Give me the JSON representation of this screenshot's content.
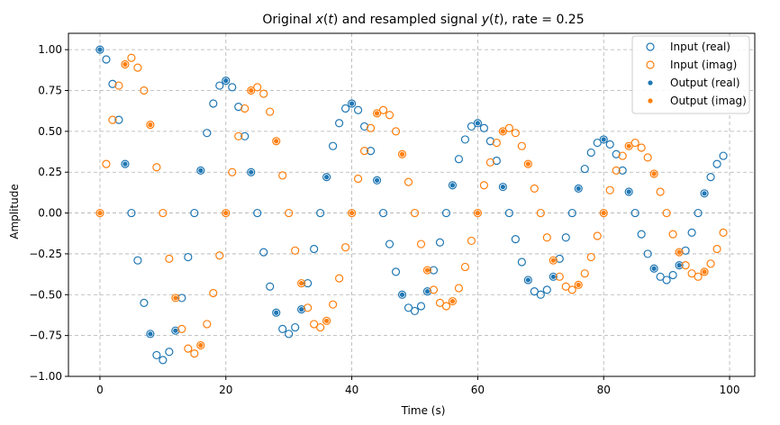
{
  "chart_data": {
    "type": "scatter",
    "title_parts": [
      "Original ",
      "x",
      "(",
      "t",
      ") and resampled signal ",
      "y",
      "(",
      "t",
      "), rate = 0.25"
    ],
    "xlabel": "Time (s)",
    "ylabel": "Amplitude",
    "xlim": [
      -5,
      104
    ],
    "ylim": [
      -1.0,
      1.1
    ],
    "xticks": [
      0,
      20,
      40,
      60,
      80,
      100
    ],
    "yticks": [
      -1.0,
      -0.75,
      -0.5,
      -0.25,
      0.0,
      0.25,
      0.5,
      0.75,
      1.0
    ],
    "xtick_labels": [
      "0",
      "20",
      "40",
      "60",
      "80",
      "100"
    ],
    "ytick_labels": [
      "−1.00",
      "−0.75",
      "−0.50",
      "−0.25",
      "0.00",
      "0.25",
      "0.50",
      "0.75",
      "1.00"
    ],
    "grid": true,
    "legend_position": "top-right",
    "colors": {
      "blue": "#1f77b4",
      "orange": "#ff7f0e",
      "grid": "#b0b0b0"
    },
    "series": [
      {
        "name": "Input (real)",
        "marker": "hollow",
        "color": "#1f77b4",
        "x": [
          0,
          1,
          2,
          3,
          4,
          5,
          6,
          7,
          8,
          9,
          10,
          11,
          12,
          13,
          14,
          15,
          16,
          17,
          18,
          19,
          20,
          21,
          22,
          23,
          24,
          25,
          26,
          27,
          28,
          29,
          30,
          31,
          32,
          33,
          34,
          35,
          36,
          37,
          38,
          39,
          40,
          41,
          42,
          43,
          44,
          45,
          46,
          47,
          48,
          49,
          50,
          51,
          52,
          53,
          54,
          55,
          56,
          57,
          58,
          59,
          60,
          61,
          62,
          63,
          64,
          65,
          66,
          67,
          68,
          69,
          70,
          71,
          72,
          73,
          74,
          75,
          76,
          77,
          78,
          79,
          80,
          81,
          82,
          83,
          84,
          85,
          86,
          87,
          88,
          89,
          90,
          91,
          92,
          93,
          94,
          95,
          96,
          97,
          98,
          99
        ],
        "y": [
          1.0,
          0.94,
          0.79,
          0.57,
          0.3,
          0.0,
          -0.29,
          -0.55,
          -0.74,
          -0.87,
          -0.9,
          -0.85,
          -0.72,
          -0.52,
          -0.27,
          0.0,
          0.26,
          0.49,
          0.67,
          0.78,
          0.81,
          0.77,
          0.65,
          0.47,
          0.25,
          0.0,
          -0.24,
          -0.45,
          -0.61,
          -0.71,
          -0.74,
          -0.7,
          -0.59,
          -0.43,
          -0.22,
          0.0,
          0.22,
          0.41,
          0.55,
          0.64,
          0.67,
          0.63,
          0.53,
          0.38,
          0.2,
          0.0,
          -0.19,
          -0.36,
          -0.5,
          -0.58,
          -0.6,
          -0.57,
          -0.48,
          -0.35,
          -0.18,
          0.0,
          0.17,
          0.33,
          0.45,
          0.53,
          0.55,
          0.52,
          0.44,
          0.32,
          0.16,
          0.0,
          -0.16,
          -0.3,
          -0.41,
          -0.48,
          -0.5,
          -0.47,
          -0.39,
          -0.28,
          -0.15,
          0.0,
          0.15,
          0.27,
          0.37,
          0.43,
          0.45,
          0.42,
          0.36,
          0.26,
          0.13,
          0.0,
          -0.13,
          -0.25,
          -0.34,
          -0.39,
          -0.41,
          -0.38,
          -0.32,
          -0.23,
          -0.12,
          0.0,
          0.12,
          0.22,
          0.3,
          0.35
        ]
      },
      {
        "name": "Input (imag)",
        "marker": "hollow",
        "color": "#ff7f0e",
        "x": [
          0,
          1,
          2,
          3,
          4,
          5,
          6,
          7,
          8,
          9,
          10,
          11,
          12,
          13,
          14,
          15,
          16,
          17,
          18,
          19,
          20,
          21,
          22,
          23,
          24,
          25,
          26,
          27,
          28,
          29,
          30,
          31,
          32,
          33,
          34,
          35,
          36,
          37,
          38,
          39,
          40,
          41,
          42,
          43,
          44,
          45,
          46,
          47,
          48,
          49,
          50,
          51,
          52,
          53,
          54,
          55,
          56,
          57,
          58,
          59,
          60,
          61,
          62,
          63,
          64,
          65,
          66,
          67,
          68,
          69,
          70,
          71,
          72,
          73,
          74,
          75,
          76,
          77,
          78,
          79,
          80,
          81,
          82,
          83,
          84,
          85,
          86,
          87,
          88,
          89,
          90,
          91,
          92,
          93,
          94,
          95,
          96,
          97,
          98,
          99
        ],
        "y": [
          0.0,
          0.3,
          0.57,
          0.78,
          0.91,
          0.95,
          0.89,
          0.75,
          0.54,
          0.28,
          0.0,
          -0.28,
          -0.52,
          -0.71,
          -0.83,
          -0.86,
          -0.81,
          -0.68,
          -0.49,
          -0.26,
          0.0,
          0.25,
          0.47,
          0.64,
          0.75,
          0.77,
          0.73,
          0.62,
          0.44,
          0.23,
          0.0,
          -0.23,
          -0.43,
          -0.58,
          -0.68,
          -0.7,
          -0.66,
          -0.56,
          -0.4,
          -0.21,
          0.0,
          0.21,
          0.38,
          0.52,
          0.61,
          0.63,
          0.6,
          0.5,
          0.36,
          0.19,
          0.0,
          -0.19,
          -0.35,
          -0.47,
          -0.55,
          -0.57,
          -0.54,
          -0.46,
          -0.33,
          -0.17,
          0.0,
          0.17,
          0.31,
          0.43,
          0.5,
          0.52,
          0.49,
          0.41,
          0.3,
          0.15,
          0.0,
          -0.15,
          -0.29,
          -0.39,
          -0.45,
          -0.47,
          -0.44,
          -0.37,
          -0.27,
          -0.14,
          0.0,
          0.14,
          0.26,
          0.35,
          0.41,
          0.43,
          0.4,
          0.34,
          0.24,
          0.13,
          0.0,
          -0.13,
          -0.24,
          -0.32,
          -0.37,
          -0.39,
          -0.36,
          -0.31,
          -0.22,
          -0.12
        ]
      },
      {
        "name": "Output (real)",
        "marker": "filled",
        "color": "#1f77b4",
        "x": [
          0,
          4,
          8,
          12,
          16,
          20,
          24,
          28,
          32,
          36,
          40,
          44,
          48,
          52,
          56,
          60,
          64,
          68,
          72,
          76,
          80,
          84,
          88,
          92,
          96
        ],
        "y": [
          1.0,
          0.3,
          -0.74,
          -0.72,
          0.26,
          0.81,
          0.25,
          -0.61,
          -0.59,
          0.22,
          0.67,
          0.2,
          -0.5,
          -0.48,
          0.17,
          0.55,
          0.16,
          -0.41,
          -0.39,
          0.15,
          0.45,
          0.13,
          -0.34,
          -0.32,
          0.12
        ]
      },
      {
        "name": "Output (imag)",
        "marker": "filled",
        "color": "#ff7f0e",
        "x": [
          0,
          4,
          8,
          12,
          16,
          20,
          24,
          28,
          32,
          36,
          40,
          44,
          48,
          52,
          56,
          60,
          64,
          68,
          72,
          76,
          80,
          84,
          88,
          92,
          96
        ],
        "y": [
          0.0,
          0.91,
          0.54,
          -0.52,
          -0.81,
          0.0,
          0.75,
          0.44,
          -0.43,
          -0.66,
          0.0,
          0.61,
          0.36,
          -0.35,
          -0.54,
          0.0,
          0.5,
          0.3,
          -0.29,
          -0.44,
          0.0,
          0.41,
          0.24,
          -0.24,
          -0.36
        ]
      }
    ]
  }
}
